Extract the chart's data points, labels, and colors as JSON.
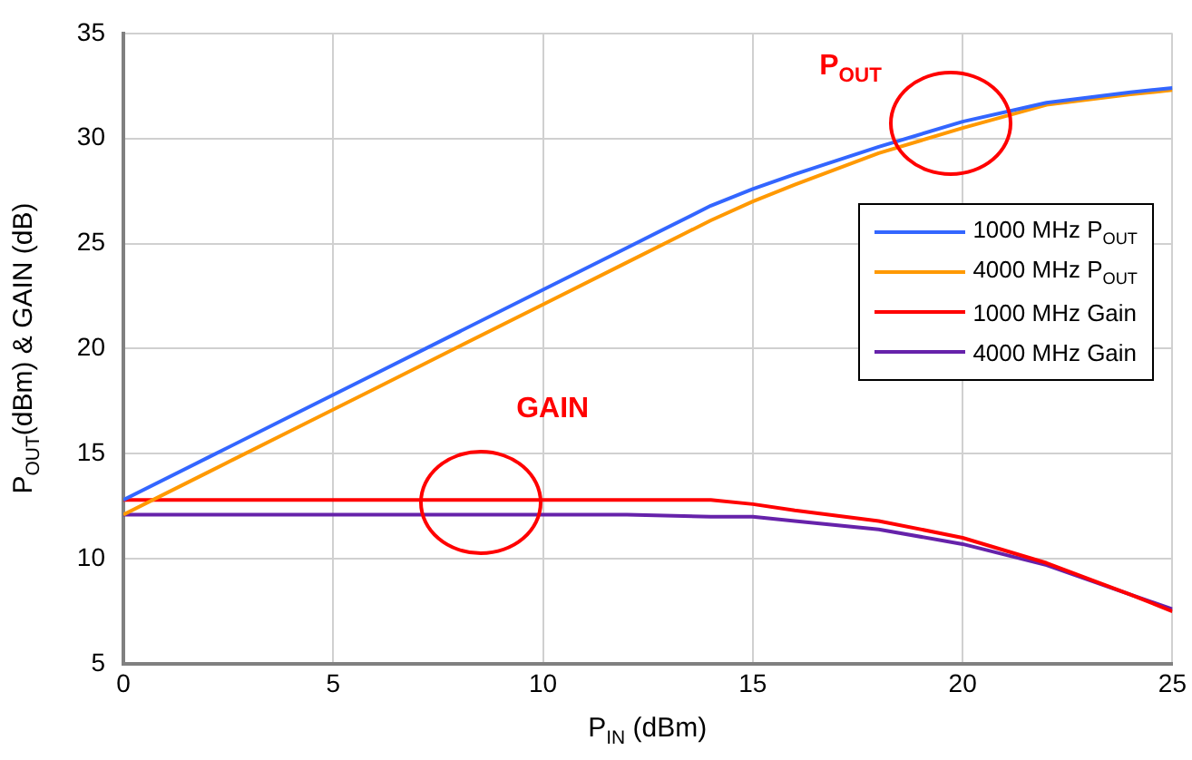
{
  "chart_data": {
    "type": "line",
    "xlabel": "P$_{IN}$ (dBm)",
    "ylabel": "P$_{OUT}$(dBm) & GAIN (dB)",
    "x": [
      0,
      2,
      4,
      6,
      8,
      10,
      12,
      14,
      15,
      16,
      18,
      20,
      22,
      24,
      25
    ],
    "series": [
      {
        "name": "1000 MHz P$_{OUT}$",
        "color": "#3366ff",
        "values": [
          12.8,
          14.8,
          16.8,
          18.8,
          20.8,
          22.8,
          24.8,
          26.8,
          27.6,
          28.3,
          29.6,
          30.8,
          31.7,
          32.2,
          32.4
        ]
      },
      {
        "name": "4000 MHz P$_{OUT}$",
        "color": "#ff9900",
        "values": [
          12.1,
          14.1,
          16.1,
          18.1,
          20.1,
          22.1,
          24.1,
          26.1,
          27.0,
          27.8,
          29.3,
          30.5,
          31.6,
          32.1,
          32.3
        ]
      },
      {
        "name": "1000 MHz Gain",
        "color": "#ff0000",
        "values": [
          12.8,
          12.8,
          12.8,
          12.8,
          12.8,
          12.8,
          12.8,
          12.8,
          12.6,
          12.3,
          11.8,
          11.0,
          9.8,
          8.3,
          7.5
        ]
      },
      {
        "name": "4000 MHz Gain",
        "color": "#6622aa",
        "values": [
          12.1,
          12.1,
          12.1,
          12.1,
          12.1,
          12.1,
          12.1,
          12.0,
          12.0,
          11.8,
          11.4,
          10.7,
          9.7,
          8.3,
          7.6
        ]
      }
    ],
    "xlim": [
      0,
      25
    ],
    "xticks": [
      0,
      5,
      10,
      15,
      20,
      25
    ],
    "ylim": [
      5,
      35
    ],
    "yticks": [
      5,
      10,
      15,
      20,
      25,
      30,
      35
    ],
    "annotations": [
      {
        "text": "P$_{OUT}$",
        "x": 19.7,
        "y": 30.7
      },
      {
        "text": "GAIN",
        "x": 8.5,
        "y": 12.7
      }
    ],
    "grid": true,
    "legend": "right",
    "marker": "none",
    "line_style": "solid"
  }
}
